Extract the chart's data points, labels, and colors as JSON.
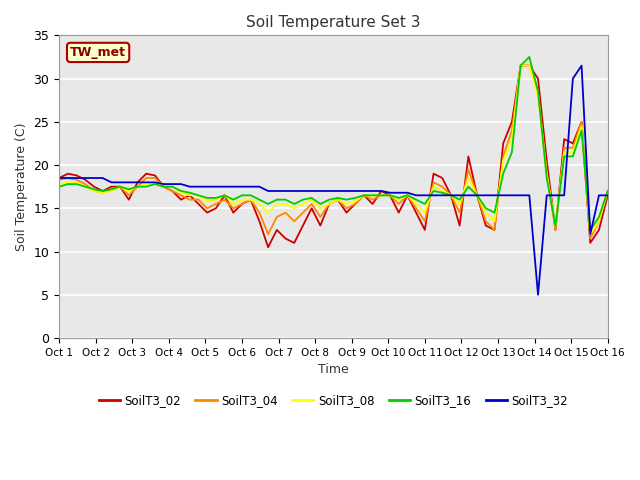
{
  "title": "Soil Temperature Set 3",
  "xlabel": "Time",
  "ylabel": "Soil Temperature (C)",
  "ylim": [
    0,
    35
  ],
  "xlim": [
    0,
    15
  ],
  "xtick_labels": [
    "Oct 1",
    "Oct 2",
    "Oct 3",
    "Oct 4",
    "Oct 5",
    "Oct 6",
    "Oct 7",
    "Oct 8",
    "Oct 9",
    "Oct 10",
    "Oct 11",
    "Oct 12",
    "Oct 13",
    "Oct 14",
    "Oct 15",
    "Oct 16"
  ],
  "ytick_values": [
    0,
    5,
    10,
    15,
    20,
    25,
    30,
    35
  ],
  "annotation_text": "TW_met",
  "annotation_bg": "#ffffcc",
  "annotation_border": "#aa0000",
  "line_colors": {
    "SoilT3_02": "#cc0000",
    "SoilT3_04": "#ff8800",
    "SoilT3_08": "#ffff00",
    "SoilT3_16": "#00cc00",
    "SoilT3_32": "#0000cc"
  },
  "fig_bg": "#ffffff",
  "plot_bg": "#e8e8e8",
  "grid_color": "#ffffff",
  "linewidth": 1.3,
  "series": {
    "SoilT3_02": [
      18.5,
      19.0,
      18.8,
      18.3,
      17.5,
      17.0,
      17.5,
      17.5,
      16.0,
      18.0,
      19.0,
      18.8,
      17.5,
      17.0,
      16.0,
      16.5,
      15.5,
      14.5,
      15.0,
      16.5,
      14.5,
      15.5,
      16.0,
      13.5,
      10.5,
      12.5,
      11.5,
      11.0,
      13.0,
      15.0,
      13.0,
      15.5,
      16.0,
      14.5,
      15.5,
      16.5,
      15.5,
      17.0,
      16.5,
      14.5,
      16.5,
      14.5,
      12.5,
      19.0,
      18.5,
      16.5,
      13.0,
      21.0,
      16.5,
      13.0,
      12.5,
      22.5,
      25.0,
      31.5,
      31.5,
      30.0,
      20.5,
      12.5,
      23.0,
      22.5,
      25.0,
      11.0,
      12.5,
      16.5
    ],
    "SoilT3_04": [
      18.3,
      18.5,
      18.3,
      17.8,
      17.0,
      16.8,
      17.2,
      17.5,
      16.5,
      17.5,
      18.5,
      18.5,
      17.5,
      17.0,
      16.5,
      16.0,
      16.0,
      15.0,
      15.5,
      16.0,
      15.0,
      15.5,
      16.0,
      14.5,
      12.0,
      14.0,
      14.5,
      13.5,
      14.5,
      15.5,
      14.0,
      15.5,
      16.0,
      15.0,
      15.5,
      16.5,
      16.0,
      16.5,
      16.5,
      15.5,
      16.5,
      15.0,
      13.5,
      18.0,
      17.5,
      16.5,
      14.5,
      19.5,
      16.5,
      13.5,
      12.5,
      21.0,
      24.0,
      31.5,
      31.5,
      28.5,
      19.0,
      12.5,
      22.0,
      22.0,
      25.0,
      11.5,
      13.5,
      17.0
    ],
    "SoilT3_08": [
      17.8,
      18.0,
      18.0,
      17.5,
      17.0,
      16.8,
      17.0,
      17.5,
      17.0,
      17.5,
      17.8,
      18.0,
      17.8,
      17.5,
      16.8,
      16.5,
      16.5,
      15.8,
      16.0,
      16.5,
      15.5,
      16.0,
      16.0,
      15.5,
      14.5,
      15.5,
      15.5,
      15.0,
      15.5,
      16.0,
      15.0,
      15.5,
      16.0,
      15.5,
      15.8,
      16.5,
      16.5,
      16.5,
      16.5,
      16.0,
      16.5,
      15.5,
      14.5,
      17.5,
      17.0,
      16.5,
      15.5,
      18.5,
      16.5,
      14.5,
      13.5,
      20.5,
      23.0,
      31.5,
      31.5,
      28.0,
      19.0,
      13.0,
      21.5,
      21.5,
      24.5,
      12.0,
      13.5,
      17.0
    ],
    "SoilT3_16": [
      17.5,
      17.8,
      17.8,
      17.5,
      17.2,
      17.0,
      17.2,
      17.5,
      17.2,
      17.5,
      17.5,
      17.8,
      17.5,
      17.5,
      17.0,
      16.8,
      16.5,
      16.2,
      16.2,
      16.5,
      16.0,
      16.5,
      16.5,
      16.0,
      15.5,
      16.0,
      16.0,
      15.5,
      16.0,
      16.2,
      15.5,
      16.0,
      16.2,
      16.0,
      16.2,
      16.5,
      16.5,
      16.5,
      16.5,
      16.2,
      16.5,
      16.0,
      15.5,
      17.0,
      16.8,
      16.5,
      16.0,
      17.5,
      16.5,
      15.0,
      14.5,
      19.0,
      21.5,
      31.5,
      32.5,
      28.5,
      18.5,
      13.0,
      21.0,
      21.0,
      24.0,
      12.5,
      14.0,
      17.0
    ],
    "SoilT3_32": [
      18.5,
      18.5,
      18.5,
      18.5,
      18.5,
      18.5,
      18.0,
      18.0,
      18.0,
      18.0,
      18.0,
      18.0,
      17.8,
      17.8,
      17.8,
      17.5,
      17.5,
      17.5,
      17.5,
      17.5,
      17.5,
      17.5,
      17.5,
      17.5,
      17.0,
      17.0,
      17.0,
      17.0,
      17.0,
      17.0,
      17.0,
      17.0,
      17.0,
      17.0,
      17.0,
      17.0,
      17.0,
      17.0,
      16.8,
      16.8,
      16.8,
      16.5,
      16.5,
      16.5,
      16.5,
      16.5,
      16.5,
      16.5,
      16.5,
      16.5,
      16.5,
      16.5,
      16.5,
      16.5,
      16.5,
      5.0,
      16.5,
      16.5,
      16.5,
      30.0,
      31.5,
      12.0,
      16.5,
      16.5
    ]
  }
}
